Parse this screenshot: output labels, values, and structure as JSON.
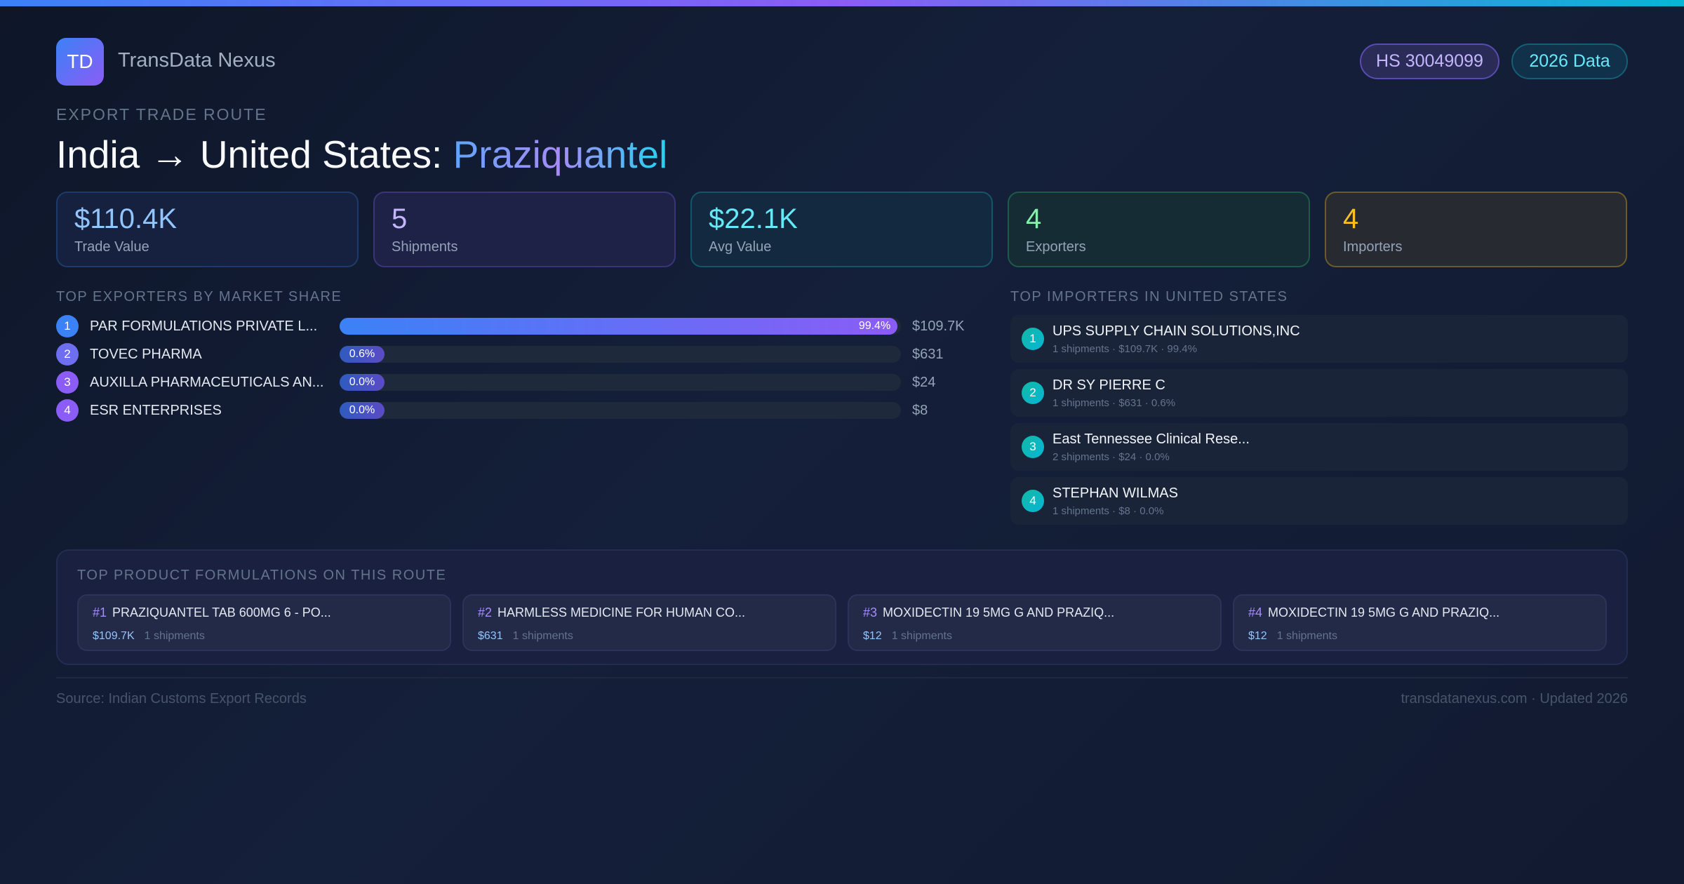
{
  "brand": {
    "logo": "TD",
    "name": "TransData Nexus"
  },
  "badges": {
    "hs": "HS 30049099",
    "year": "2026 Data"
  },
  "header": {
    "kicker": "EXPORT TRADE ROUTE",
    "title_prefix": "India → United States: ",
    "title_product": "Praziquantel"
  },
  "stats": [
    {
      "value": "$110.4K",
      "label": "Trade Value",
      "color": "#93c5fd"
    },
    {
      "value": "5",
      "label": "Shipments",
      "color": "#c4b5fd"
    },
    {
      "value": "$22.1K",
      "label": "Avg Value",
      "color": "#67e8f9"
    },
    {
      "value": "4",
      "label": "Exporters",
      "color": "#86efac"
    },
    {
      "value": "4",
      "label": "Importers",
      "color": "#fbbf24"
    }
  ],
  "exporters": {
    "heading": "TOP EXPORTERS BY MARKET SHARE",
    "items": [
      {
        "rank": "1",
        "name": "PAR FORMULATIONS PRIVATE L...",
        "share": 99.4,
        "share_label": "99.4%",
        "value": "$109.7K"
      },
      {
        "rank": "2",
        "name": "TOVEC PHARMA",
        "share": 0.6,
        "share_label": "0.6%",
        "value": "$631"
      },
      {
        "rank": "3",
        "name": "AUXILLA PHARMACEUTICALS AN...",
        "share": 0.0,
        "share_label": "0.0%",
        "value": "$24"
      },
      {
        "rank": "4",
        "name": "ESR ENTERPRISES",
        "share": 0.0,
        "share_label": "0.0%",
        "value": "$8"
      }
    ]
  },
  "importers": {
    "heading": "TOP IMPORTERS IN UNITED STATES",
    "items": [
      {
        "rank": "1",
        "name": "UPS SUPPLY CHAIN SOLUTIONS,INC",
        "detail": "1 shipments · $109.7K · 99.4%"
      },
      {
        "rank": "2",
        "name": "DR SY PIERRE C",
        "detail": "1 shipments · $631 · 0.6%"
      },
      {
        "rank": "3",
        "name": "East Tennessee Clinical Rese...",
        "detail": "2 shipments · $24 · 0.0%"
      },
      {
        "rank": "4",
        "name": "STEPHAN WILMAS",
        "detail": "1 shipments · $8 · 0.0%"
      }
    ]
  },
  "formulations": {
    "heading": "TOP PRODUCT FORMULATIONS ON THIS ROUTE",
    "items": [
      {
        "rank": "#1",
        "name": "PRAZIQUANTEL TAB 600MG 6 - PO...",
        "value": "$109.7K",
        "count": "1 shipments"
      },
      {
        "rank": "#2",
        "name": "HARMLESS MEDICINE FOR HUMAN CO...",
        "value": "$631",
        "count": "1 shipments"
      },
      {
        "rank": "#3",
        "name": "MOXIDECTIN 19 5MG G AND PRAZIQ...",
        "value": "$12",
        "count": "1 shipments"
      },
      {
        "rank": "#4",
        "name": "MOXIDECTIN 19 5MG G AND PRAZIQ...",
        "value": "$12",
        "count": "1 shipments"
      }
    ]
  },
  "footer": {
    "source": "Source: Indian Customs Export Records",
    "site": "transdatanexus.com · Updated 2026"
  }
}
